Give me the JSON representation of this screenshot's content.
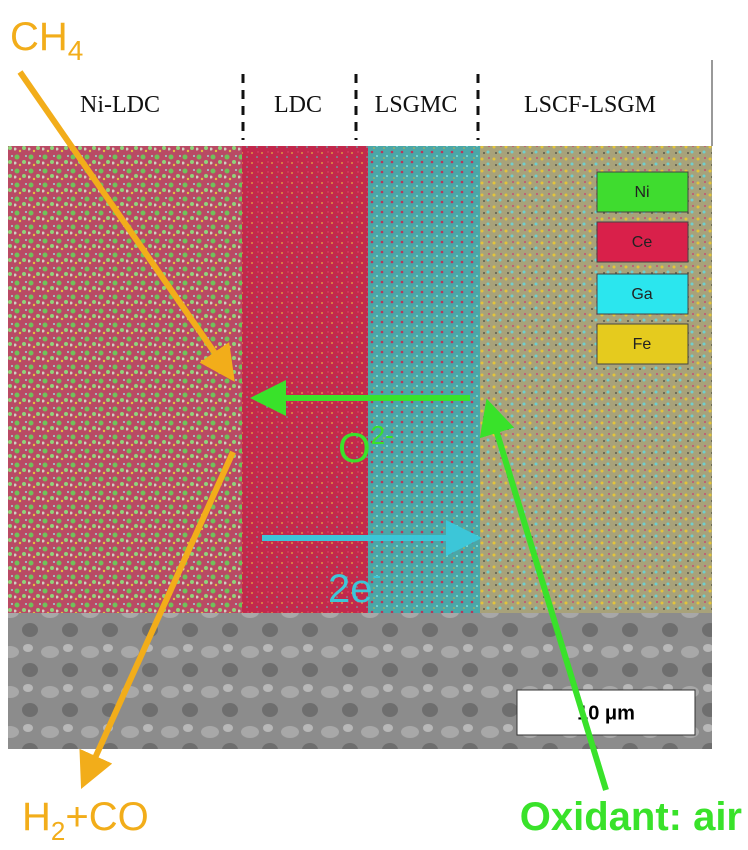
{
  "header": {
    "layers": [
      "Ni-LDC",
      "LDC",
      "LSGMC",
      "LSCF-LSGM"
    ]
  },
  "legend": [
    "Ni",
    "Ce",
    "Ga",
    "Fe"
  ],
  "labels": {
    "reactant": {
      "text": "CH",
      "subscript": "4"
    },
    "ion": {
      "text": "O",
      "superscript": "2-"
    },
    "electron": {
      "text": "2e",
      "superscript": "-"
    },
    "product": {
      "text": "H",
      "subscript": "2",
      "suffix": "+CO"
    },
    "oxidant": "Oxidant: air",
    "scale_bar": "10 μm"
  }
}
